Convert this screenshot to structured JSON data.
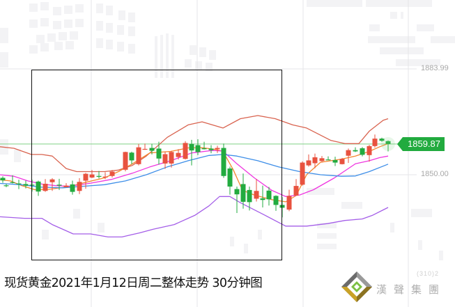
{
  "caption": "现货黄金2021年1月12日周二整体走势 30分钟图",
  "brand": {
    "name": "漢聲集團",
    "sub": "(310)2"
  },
  "price_axis": {
    "top_label": "1883.99",
    "mid_label": "1850.00",
    "current_label": "1859.87"
  },
  "colors": {
    "up": "#e8523f",
    "down": "#22ab3f",
    "upper_band": "#d9634f",
    "lower_band": "#a45ee8",
    "ma_fast": "#f5862e",
    "ma_mid": "#ef36e0",
    "ma_slow": "#3d8ee8",
    "current_line": "#7fd184",
    "current_tag": "#22ab3f"
  },
  "chart_data": {
    "type": "candlestick",
    "title": "现货黄金2021年1月12日周二整体走势 30分钟图",
    "xlabel": "",
    "ylabel": "",
    "y_ticks": [
      1850.0,
      1883.99
    ],
    "ylim": [
      1822,
      1891
    ],
    "current_price": 1859.87,
    "grid": true,
    "candles": [
      {
        "x": 4,
        "o": 1849.0,
        "h": 1849.5,
        "l": 1847.4,
        "c": 1848.2
      },
      {
        "x": 9,
        "o": 1846.6,
        "h": 1847.1,
        "l": 1846.0,
        "c": 1846.4
      },
      {
        "x": 18,
        "o": 1847.6,
        "h": 1849.8,
        "l": 1847.2,
        "c": 1847.4
      },
      {
        "x": 27,
        "o": 1847.2,
        "h": 1848.4,
        "l": 1845.4,
        "c": 1847.0
      },
      {
        "x": 37,
        "o": 1847.0,
        "h": 1848.1,
        "l": 1845.6,
        "c": 1846.5
      },
      {
        "x": 46,
        "o": 1846.8,
        "h": 1848.4,
        "l": 1844.6,
        "c": 1846.6
      },
      {
        "x": 55,
        "o": 1847.8,
        "h": 1848.1,
        "l": 1843.2,
        "c": 1844.6
      },
      {
        "x": 65,
        "o": 1844.8,
        "h": 1848.6,
        "l": 1844.5,
        "c": 1847.1
      },
      {
        "x": 75,
        "o": 1847.6,
        "h": 1848.9,
        "l": 1844.8,
        "c": 1848.5
      },
      {
        "x": 85,
        "o": 1846.8,
        "h": 1848.7,
        "l": 1845.1,
        "c": 1846.5
      },
      {
        "x": 95,
        "o": 1846.0,
        "h": 1847.3,
        "l": 1846.0,
        "c": 1846.5
      },
      {
        "x": 104,
        "o": 1846.9,
        "h": 1848.1,
        "l": 1843.6,
        "c": 1844.5
      },
      {
        "x": 114,
        "o": 1844.8,
        "h": 1848.9,
        "l": 1843.8,
        "c": 1847.7
      },
      {
        "x": 123,
        "o": 1848.1,
        "h": 1850.6,
        "l": 1845.5,
        "c": 1850.3
      },
      {
        "x": 132,
        "o": 1849.1,
        "h": 1851.5,
        "l": 1848.9,
        "c": 1850.1
      },
      {
        "x": 142,
        "o": 1849.6,
        "h": 1851.2,
        "l": 1848.8,
        "c": 1849.4
      },
      {
        "x": 151,
        "o": 1849.1,
        "h": 1850.8,
        "l": 1848.6,
        "c": 1849.4
      },
      {
        "x": 161,
        "o": 1849.6,
        "h": 1851.5,
        "l": 1849.1,
        "c": 1851.0
      },
      {
        "x": 180,
        "o": 1851.6,
        "h": 1857.4,
        "l": 1851.1,
        "c": 1857.3
      },
      {
        "x": 189,
        "o": 1857.1,
        "h": 1857.4,
        "l": 1853.4,
        "c": 1854.6
      },
      {
        "x": 199,
        "o": 1853.4,
        "h": 1859.9,
        "l": 1853.0,
        "c": 1858.8
      },
      {
        "x": 208,
        "o": 1858.2,
        "h": 1860.0,
        "l": 1858.0,
        "c": 1858.3
      },
      {
        "x": 218,
        "o": 1858.6,
        "h": 1859.9,
        "l": 1856.5,
        "c": 1857.7
      },
      {
        "x": 228,
        "o": 1858.4,
        "h": 1860.6,
        "l": 1853.3,
        "c": 1855.2
      },
      {
        "x": 237,
        "o": 1853.6,
        "h": 1857.4,
        "l": 1851.9,
        "c": 1856.6
      },
      {
        "x": 246,
        "o": 1853.6,
        "h": 1857.7,
        "l": 1852.3,
        "c": 1857.3
      },
      {
        "x": 256,
        "o": 1855.7,
        "h": 1858.2,
        "l": 1854.9,
        "c": 1857.0
      },
      {
        "x": 266,
        "o": 1855.1,
        "h": 1860.8,
        "l": 1854.9,
        "c": 1860.2
      },
      {
        "x": 275,
        "o": 1859.9,
        "h": 1861.2,
        "l": 1853.0,
        "c": 1857.8
      },
      {
        "x": 284,
        "o": 1859.5,
        "h": 1861.4,
        "l": 1856.3,
        "c": 1857.3
      },
      {
        "x": 293,
        "o": 1858.5,
        "h": 1860.6,
        "l": 1858.1,
        "c": 1858.2
      },
      {
        "x": 303,
        "o": 1858.4,
        "h": 1859.5,
        "l": 1856.9,
        "c": 1857.9
      },
      {
        "x": 312,
        "o": 1858.2,
        "h": 1859.3,
        "l": 1857.0,
        "c": 1858.6
      },
      {
        "x": 321,
        "o": 1858.6,
        "h": 1860.0,
        "l": 1849.0,
        "c": 1849.6
      },
      {
        "x": 330,
        "o": 1852.0,
        "h": 1852.6,
        "l": 1843.6,
        "c": 1846.2
      },
      {
        "x": 340,
        "o": 1845.4,
        "h": 1846.2,
        "l": 1837.7,
        "c": 1843.7
      },
      {
        "x": 349,
        "o": 1847.0,
        "h": 1850.4,
        "l": 1839.1,
        "c": 1841.3
      },
      {
        "x": 358,
        "o": 1845.1,
        "h": 1846.2,
        "l": 1838.5,
        "c": 1841.2
      },
      {
        "x": 368,
        "o": 1842.3,
        "h": 1848.6,
        "l": 1841.4,
        "c": 1844.8
      },
      {
        "x": 377,
        "o": 1842.4,
        "h": 1846.5,
        "l": 1839.5,
        "c": 1841.9
      },
      {
        "x": 386,
        "o": 1844.9,
        "h": 1846.1,
        "l": 1840.1,
        "c": 1842.1
      },
      {
        "x": 396,
        "o": 1843.2,
        "h": 1843.4,
        "l": 1838.4,
        "c": 1840.3
      },
      {
        "x": 405,
        "o": 1840.3,
        "h": 1842.8,
        "l": 1836.3,
        "c": 1839.4
      },
      {
        "x": 415,
        "o": 1838.8,
        "h": 1845.2,
        "l": 1838.3,
        "c": 1843.2
      },
      {
        "x": 425,
        "o": 1843.3,
        "h": 1848.6,
        "l": 1843.3,
        "c": 1846.4
      },
      {
        "x": 434,
        "o": 1846.8,
        "h": 1854.3,
        "l": 1846.5,
        "c": 1853.9
      },
      {
        "x": 443,
        "o": 1853.0,
        "h": 1856.5,
        "l": 1852.6,
        "c": 1854.6
      },
      {
        "x": 452,
        "o": 1853.7,
        "h": 1856.8,
        "l": 1852.1,
        "c": 1855.6
      },
      {
        "x": 462,
        "o": 1854.4,
        "h": 1856.0,
        "l": 1854.0,
        "c": 1855.3
      },
      {
        "x": 471,
        "o": 1854.9,
        "h": 1855.9,
        "l": 1854.9,
        "c": 1854.8
      },
      {
        "x": 481,
        "o": 1854.7,
        "h": 1855.8,
        "l": 1852.8,
        "c": 1853.9
      },
      {
        "x": 491,
        "o": 1853.4,
        "h": 1855.4,
        "l": 1853.3,
        "c": 1855.1
      },
      {
        "x": 500,
        "o": 1856.1,
        "h": 1858.4,
        "l": 1853.8,
        "c": 1857.9
      },
      {
        "x": 510,
        "o": 1857.9,
        "h": 1858.8,
        "l": 1857.3,
        "c": 1857.5
      },
      {
        "x": 520,
        "o": 1858.5,
        "h": 1858.9,
        "l": 1855.9,
        "c": 1856.4
      },
      {
        "x": 530,
        "o": 1856.3,
        "h": 1859.6,
        "l": 1854.2,
        "c": 1859.2
      },
      {
        "x": 538,
        "o": 1859.2,
        "h": 1862.9,
        "l": 1858.7,
        "c": 1861.6
      },
      {
        "x": 548,
        "o": 1861.6,
        "h": 1861.9,
        "l": 1860.6,
        "c": 1860.9
      },
      {
        "x": 557,
        "o": 1860.8,
        "h": 1861.0,
        "l": 1857.5,
        "c": 1859.87
      }
    ],
    "series": [
      {
        "name": "upper_band",
        "points": [
          [
            0,
            1859
          ],
          [
            20,
            1858.5
          ],
          [
            45,
            1856.5
          ],
          [
            60,
            1856.5
          ],
          [
            75,
            1856
          ],
          [
            95,
            1852
          ],
          [
            110,
            1851
          ],
          [
            150,
            1851
          ],
          [
            170,
            1851.5
          ],
          [
            190,
            1853
          ],
          [
            210,
            1856
          ],
          [
            240,
            1862
          ],
          [
            270,
            1866
          ],
          [
            290,
            1867
          ],
          [
            320,
            1865
          ],
          [
            345,
            1868
          ],
          [
            370,
            1869
          ],
          [
            395,
            1868
          ],
          [
            420,
            1866
          ],
          [
            440,
            1865
          ],
          [
            475,
            1861
          ],
          [
            495,
            1860
          ],
          [
            515,
            1860
          ],
          [
            530,
            1864
          ],
          [
            550,
            1867.5
          ],
          [
            557,
            1868
          ]
        ]
      },
      {
        "name": "lower_band",
        "points": [
          [
            0,
            1836.5
          ],
          [
            35,
            1836
          ],
          [
            60,
            1836
          ],
          [
            75,
            1834
          ],
          [
            95,
            1832
          ],
          [
            105,
            1831
          ],
          [
            130,
            1831
          ],
          [
            155,
            1830
          ],
          [
            175,
            1830
          ],
          [
            190,
            1830.8
          ],
          [
            200,
            1831.3
          ],
          [
            220,
            1832.5
          ],
          [
            250,
            1834
          ],
          [
            280,
            1837
          ],
          [
            300,
            1840
          ],
          [
            315,
            1843
          ],
          [
            330,
            1843
          ],
          [
            345,
            1841
          ],
          [
            380,
            1837
          ],
          [
            410,
            1833.5
          ],
          [
            440,
            1833.5
          ],
          [
            470,
            1834.3
          ],
          [
            495,
            1835.3
          ],
          [
            520,
            1835.8
          ],
          [
            535,
            1837
          ],
          [
            550,
            1838.7
          ],
          [
            557,
            1839.5
          ]
        ]
      },
      {
        "name": "ma_fast",
        "points": [
          [
            0,
            1848.4
          ],
          [
            15,
            1848
          ],
          [
            30,
            1846.6
          ],
          [
            50,
            1845.2
          ],
          [
            70,
            1845.3
          ],
          [
            100,
            1846.2
          ],
          [
            120,
            1847.4
          ],
          [
            150,
            1849
          ],
          [
            170,
            1851
          ],
          [
            190,
            1853.5
          ],
          [
            215,
            1857
          ],
          [
            245,
            1857.5
          ],
          [
            270,
            1858.6
          ],
          [
            290,
            1858.7
          ],
          [
            310,
            1858.1
          ],
          [
            320,
            1857.5
          ],
          [
            335,
            1851.5
          ],
          [
            348,
            1845
          ],
          [
            365,
            1843.5
          ],
          [
            390,
            1842
          ],
          [
            410,
            1841.3
          ],
          [
            425,
            1843.3
          ],
          [
            440,
            1850
          ],
          [
            460,
            1854
          ],
          [
            490,
            1855
          ],
          [
            510,
            1856
          ],
          [
            530,
            1857.5
          ],
          [
            545,
            1859
          ],
          [
            557,
            1860
          ]
        ]
      },
      {
        "name": "ma_mid",
        "points": [
          [
            0,
            1850
          ],
          [
            20,
            1849.5
          ],
          [
            40,
            1848
          ],
          [
            60,
            1847
          ],
          [
            80,
            1846.5
          ],
          [
            100,
            1846.3
          ],
          [
            130,
            1847.3
          ],
          [
            160,
            1848.5
          ],
          [
            190,
            1850.5
          ],
          [
            215,
            1852.5
          ],
          [
            245,
            1854.5
          ],
          [
            275,
            1857
          ],
          [
            305,
            1857.8
          ],
          [
            320,
            1857.6
          ],
          [
            340,
            1853.5
          ],
          [
            365,
            1849
          ],
          [
            390,
            1845
          ],
          [
            410,
            1843
          ],
          [
            430,
            1843.5
          ],
          [
            450,
            1845.2
          ],
          [
            480,
            1849
          ],
          [
            510,
            1853.5
          ],
          [
            530,
            1854.5
          ],
          [
            545,
            1855.5
          ],
          [
            557,
            1856
          ]
        ]
      },
      {
        "name": "ma_slow",
        "points": [
          [
            0,
            1847.2
          ],
          [
            30,
            1846.8
          ],
          [
            60,
            1846
          ],
          [
            90,
            1845.8
          ],
          [
            120,
            1846.3
          ],
          [
            150,
            1846.8
          ],
          [
            180,
            1848
          ],
          [
            210,
            1850
          ],
          [
            240,
            1852.5
          ],
          [
            270,
            1854.5
          ],
          [
            300,
            1856.2
          ],
          [
            320,
            1856.5
          ],
          [
            340,
            1856
          ],
          [
            370,
            1854.5
          ],
          [
            400,
            1852.5
          ],
          [
            430,
            1851
          ],
          [
            460,
            1850
          ],
          [
            490,
            1849.5
          ],
          [
            510,
            1849.6
          ],
          [
            530,
            1851
          ],
          [
            557,
            1853.4
          ]
        ]
      }
    ]
  }
}
